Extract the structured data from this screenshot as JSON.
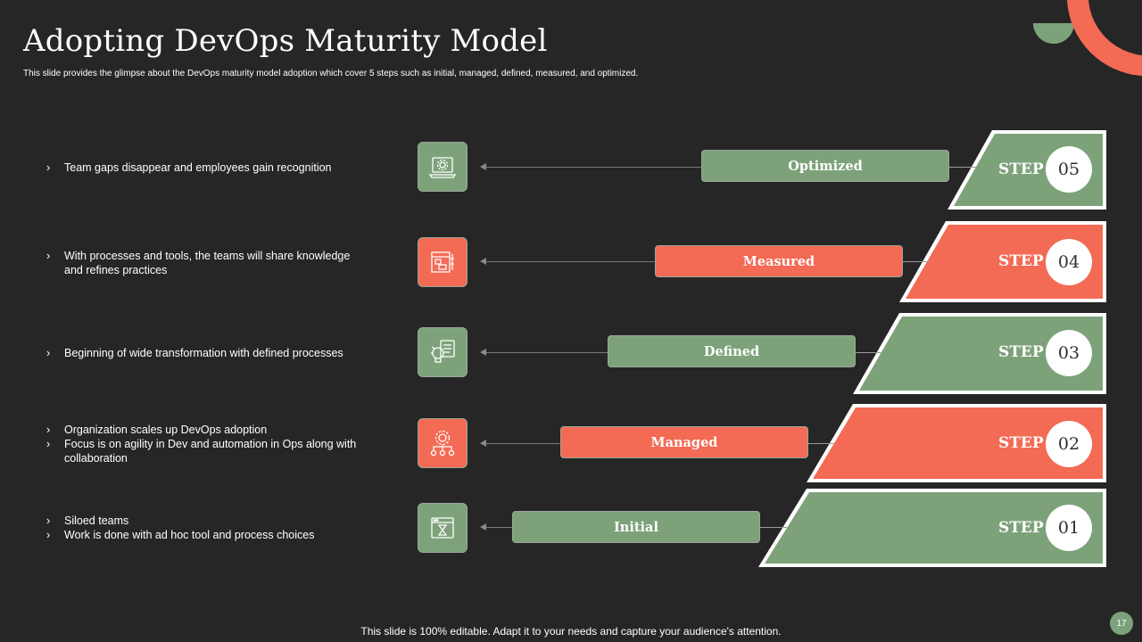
{
  "slide": {
    "title": "Adopting DevOps Maturity Model",
    "subtitle": "This slide provides the glimpse about the DevOps maturity model adoption which cover 5 steps such as initial, managed, defined, measured, and optimized.",
    "footer": "This slide is 100% editable. Adapt it to your needs and capture your audience's attention.",
    "page_number": "17"
  },
  "colors": {
    "green": "#7da27a",
    "coral": "#f36a55",
    "background": "#262626"
  },
  "steps": [
    {
      "step_label": "STEP",
      "number": "05",
      "level": "Optimized",
      "color": "green",
      "icon": "laptop-gear-icon",
      "bullets": [
        "Team gaps disappear and employees gain recognition"
      ]
    },
    {
      "step_label": "STEP",
      "number": "04",
      "level": "Measured",
      "color": "coral",
      "icon": "dashboard-icon",
      "bullets": [
        "With processes and tools, the teams will share knowledge and refines practices"
      ]
    },
    {
      "step_label": "STEP",
      "number": "03",
      "level": "Defined",
      "color": "green",
      "icon": "idea-target-icon",
      "bullets": [
        "Beginning of wide transformation with defined processes"
      ]
    },
    {
      "step_label": "STEP",
      "number": "02",
      "level": "Managed",
      "color": "coral",
      "icon": "gear-network-icon",
      "bullets": [
        "Organization scales up DevOps adoption",
        "Focus is on agility in Dev and automation in Ops along with collaboration"
      ]
    },
    {
      "step_label": "STEP",
      "number": "01",
      "level": "Initial",
      "color": "green",
      "icon": "browser-hourglass-icon",
      "bullets": [
        "Siloed teams",
        "Work is done with ad hoc tool and process choices"
      ]
    }
  ]
}
